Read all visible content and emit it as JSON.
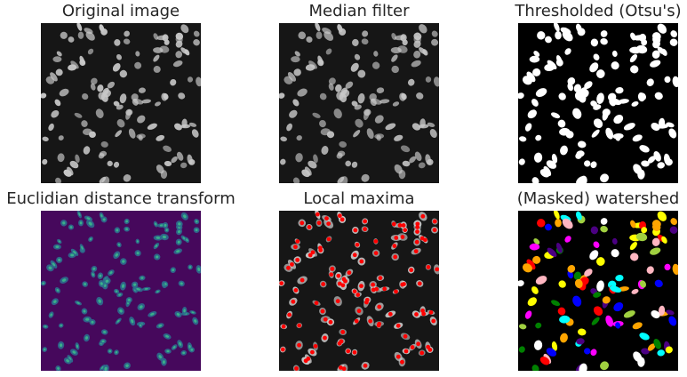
{
  "panels": [
    {
      "title": "Original image",
      "kind": "original"
    },
    {
      "title": "Median filter",
      "kind": "median"
    },
    {
      "title": "Thresholded (Otsu's)",
      "kind": "threshold"
    },
    {
      "title": "Euclidian distance transform",
      "kind": "edt"
    },
    {
      "title": "Local maxima",
      "kind": "maxima"
    },
    {
      "title": "(Masked) watershed",
      "kind": "watershed"
    }
  ],
  "colors": {
    "page_bg": "#ffffff",
    "title_text": "#262626",
    "fluorescence_bg": "#161616",
    "nucleus_fill": "#c8c8c8",
    "threshold_bg": "#000000",
    "threshold_fg": "#ffffff",
    "edt_bg": "#46085c",
    "edt_mid": "#2c6e8e",
    "edt_high": "#3bb98a",
    "maxima_marker": "#ff0000",
    "watershed_palette": [
      "#ff0000",
      "#ffff00",
      "#0000ff",
      "#ff00ff",
      "#00ffff",
      "#ffa500",
      "#a0d040",
      "#ffb6c1",
      "#4b0082",
      "#008000",
      "#ffffff"
    ]
  }
}
